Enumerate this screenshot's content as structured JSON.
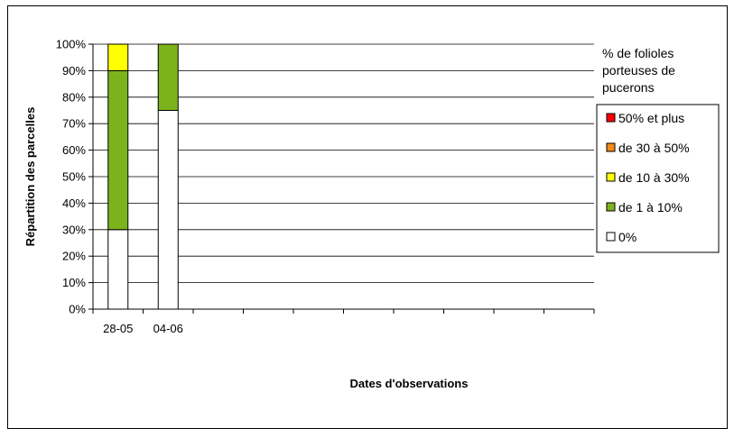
{
  "chart_data": {
    "type": "bar",
    "stacked": true,
    "categories": [
      "28-05",
      "04-06",
      "",
      "",
      "",
      "",
      "",
      "",
      "",
      ""
    ],
    "series": [
      {
        "name": "0%",
        "values": [
          30,
          75,
          null,
          null,
          null,
          null,
          null,
          null,
          null,
          null
        ],
        "color": "#ffffff"
      },
      {
        "name": "de 1 à 10%",
        "values": [
          60,
          25,
          null,
          null,
          null,
          null,
          null,
          null,
          null,
          null
        ],
        "color": "#7cb31c"
      },
      {
        "name": "de 10 à 30%",
        "values": [
          10,
          0,
          null,
          null,
          null,
          null,
          null,
          null,
          null,
          null
        ],
        "color": "#ffff00"
      },
      {
        "name": "de 30 à 50%",
        "values": [
          0,
          0,
          null,
          null,
          null,
          null,
          null,
          null,
          null,
          null
        ],
        "color": "#f28a1a"
      },
      {
        "name": "50% et plus",
        "values": [
          0,
          0,
          null,
          null,
          null,
          null,
          null,
          null,
          null,
          null
        ],
        "color": "#ff0000"
      }
    ],
    "xlabel": "Dates d'observations",
    "ylabel": "Répartition des parcelles",
    "ylim": [
      0,
      100
    ],
    "yticks": [
      "0%",
      "10%",
      "20%",
      "30%",
      "40%",
      "50%",
      "60%",
      "70%",
      "80%",
      "90%",
      "100%"
    ],
    "legend_title": [
      "% de folioles",
      "porteuses de",
      "pucerons"
    ],
    "legend_order": [
      "50% et plus",
      "de 30 à 50%",
      "de 10 à 30%",
      "de 1 à 10%",
      "0%"
    ],
    "legend_position": "right",
    "grid": true
  }
}
